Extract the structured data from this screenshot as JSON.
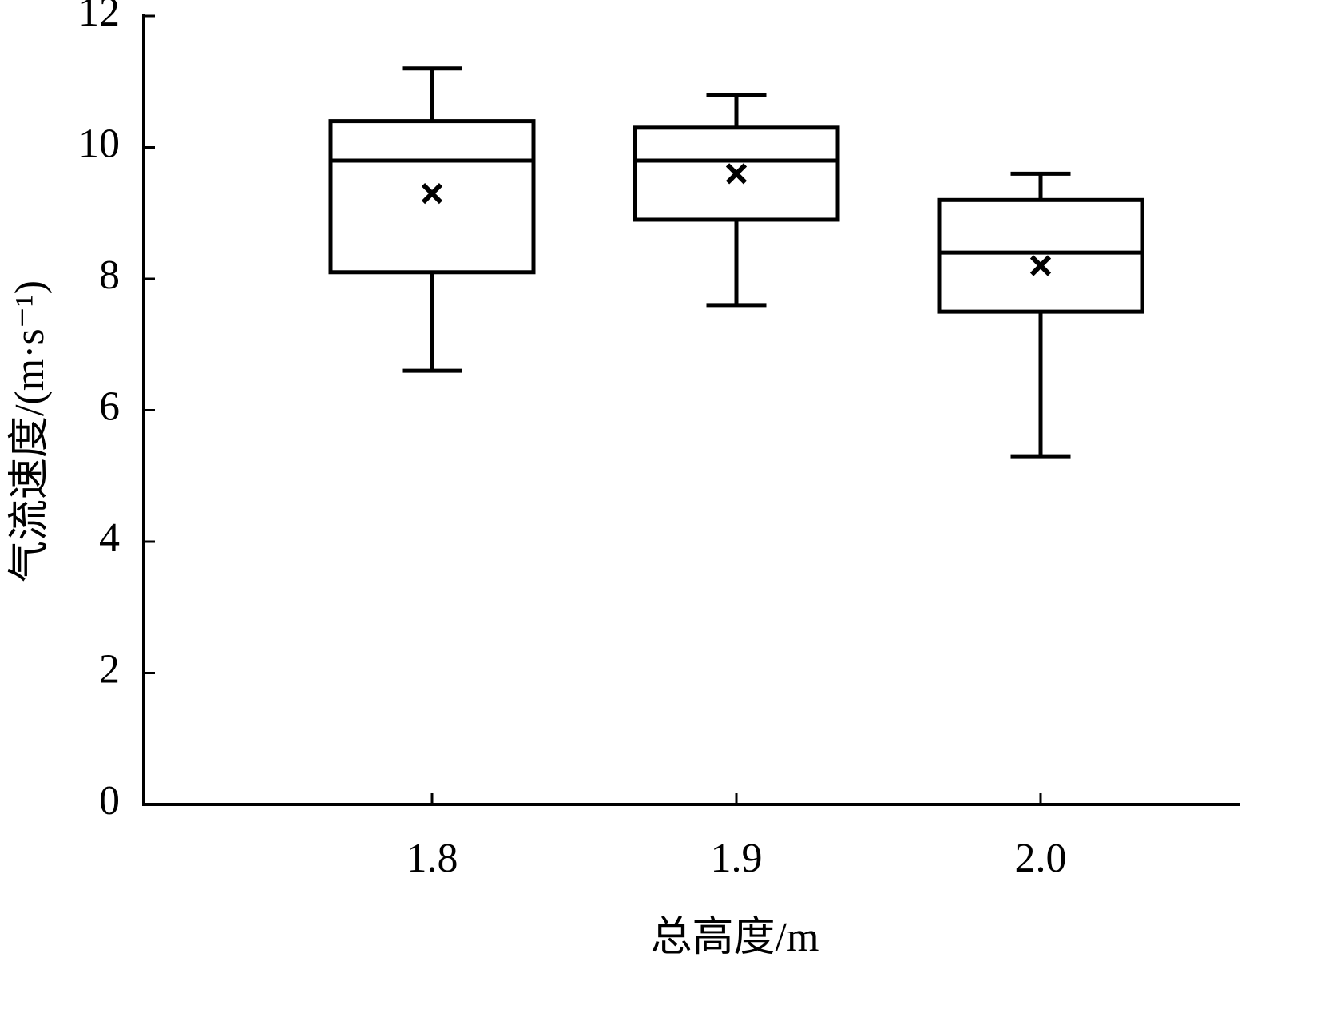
{
  "chart_data": {
    "type": "box",
    "x_label": "总高度/m",
    "y_label": "气流速度/(m·s⁻¹)",
    "categories": [
      "1.8",
      "1.9",
      "2.0"
    ],
    "min": [
      6.6,
      7.6,
      5.3
    ],
    "q1": [
      8.1,
      8.9,
      7.5
    ],
    "median": [
      9.8,
      9.8,
      8.4
    ],
    "q3": [
      10.4,
      10.3,
      9.2
    ],
    "max": [
      11.2,
      10.8,
      9.6
    ],
    "mean": [
      9.3,
      9.6,
      8.2
    ],
    "color": "#000000",
    "ylim": [
      0,
      12
    ],
    "yticks": [
      0,
      2,
      4,
      6,
      8,
      10,
      12
    ]
  }
}
